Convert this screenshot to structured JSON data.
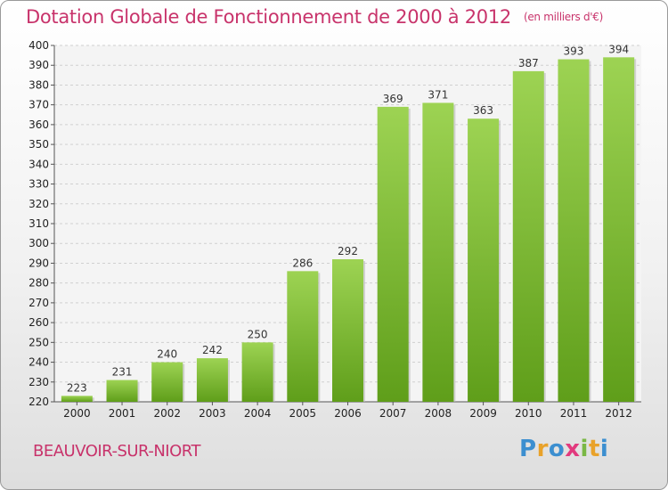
{
  "title": "Dotation Globale de Fonctionnement de 2000 à 2012",
  "subtitle": "(en milliers d'€)",
  "commune": "BEAUVOIR-SUR-NIORT",
  "logo": "Proxiti",
  "colors": {
    "accent": "#c8336b",
    "bar_top": "#9dd353",
    "bar_bottom": "#5f9e1a",
    "grid": "#d0d0d0"
  },
  "chart_data": {
    "type": "bar",
    "title": "Dotation Globale de Fonctionnement de 2000 à 2012",
    "subtitle": "(en milliers d'€)",
    "categories": [
      "2000",
      "2001",
      "2002",
      "2003",
      "2004",
      "2005",
      "2006",
      "2007",
      "2008",
      "2009",
      "2010",
      "2011",
      "2012"
    ],
    "values": [
      223,
      231,
      240,
      242,
      250,
      286,
      292,
      369,
      371,
      363,
      387,
      393,
      394
    ],
    "ylim": [
      220,
      400
    ],
    "yticks": [
      220,
      230,
      240,
      250,
      260,
      270,
      280,
      290,
      300,
      310,
      320,
      330,
      340,
      350,
      360,
      370,
      380,
      390,
      400
    ],
    "grid": true,
    "data_labels": true
  }
}
